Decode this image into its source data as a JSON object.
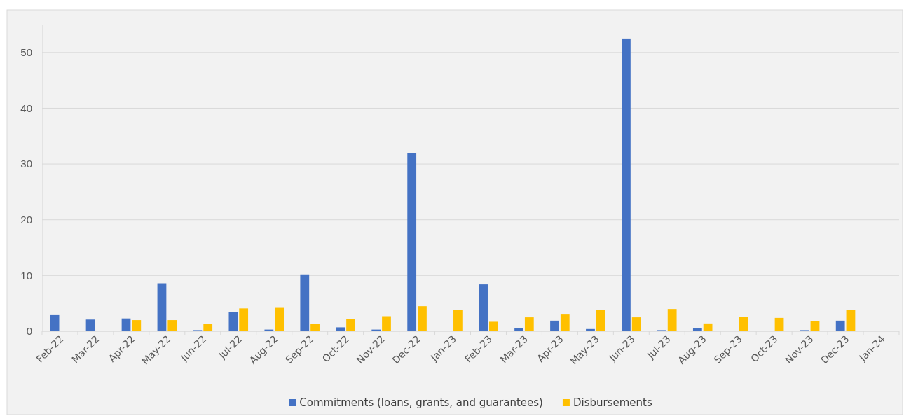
{
  "chart_data": {
    "type": "bar",
    "categories": [
      "Feb-22",
      "Mar-22",
      "Apr-22",
      "May-22",
      "Jun-22",
      "Jul-22",
      "Aug-22",
      "Sep-22",
      "Oct-22",
      "Nov-22",
      "Dec-22",
      "Jan-23",
      "Feb-23",
      "Mar-23",
      "Apr-23",
      "May-23",
      "Jun-23",
      "Jul-23",
      "Aug-23",
      "Sep-23",
      "Oct-23",
      "Nov-23",
      "Dec-23",
      "Jan-24"
    ],
    "series": [
      {
        "name": "Commitments (loans, grants, and guarantees)",
        "color": "#4472c4",
        "values": [
          2.9,
          2.1,
          2.3,
          8.6,
          0.2,
          3.4,
          0.3,
          10.2,
          0.7,
          0.3,
          31.9,
          null,
          8.4,
          0.5,
          1.9,
          0.4,
          52.5,
          0.2,
          0.5,
          0.1,
          0.1,
          0.2,
          1.9,
          null
        ]
      },
      {
        "name": "Disbursements",
        "color": "#ffc000",
        "values": [
          null,
          null,
          2.0,
          2.0,
          1.3,
          4.1,
          4.2,
          1.3,
          2.2,
          2.7,
          4.5,
          3.8,
          1.7,
          2.5,
          3.0,
          3.8,
          2.5,
          4.0,
          1.4,
          2.6,
          2.4,
          1.8,
          3.8,
          null
        ]
      }
    ],
    "ylim": [
      0,
      55
    ],
    "yticks": [
      0,
      10,
      20,
      30,
      40,
      50
    ],
    "grid": "y",
    "legend": "bottom"
  }
}
